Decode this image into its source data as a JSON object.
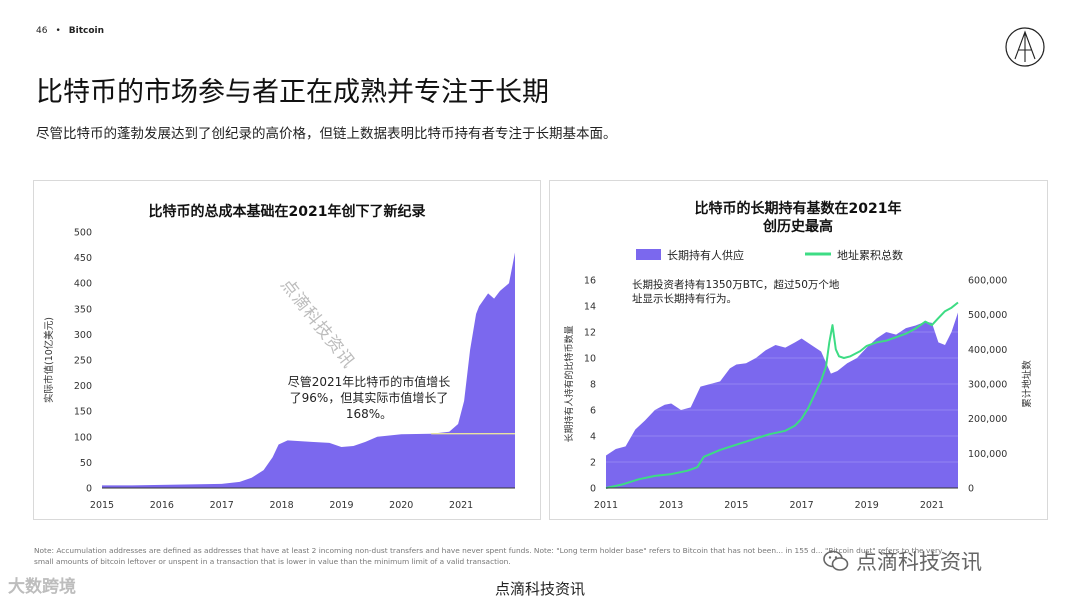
{
  "header": {
    "page_number": "46",
    "bullet": "•",
    "section": "Bitcoin"
  },
  "title": "比特币的市场参与者正在成熟并专注于长期",
  "subtitle": "尽管比特币的蓬勃发展达到了创纪录的高价格，但链上数据表明比特币持有者专注于长期基本面。",
  "watermarks": {
    "diagonal": "点滴科技资讯",
    "bottom_left": "大数跨境",
    "bottom_right": "点滴科技资讯"
  },
  "footnote": "Note: Accumulation addresses are defined as addresses that have at least 2 incoming non-dust transfers and have never spent funds. Note: \"Long term holder base\" refers to Bitcoin that has not been... in 155 d... \"Bitcoin dust\" refers to the very small amounts of bitcoin leftover or unspent in a transaction that is lower in value than the minimum limit of a valid transaction.",
  "footer": "点滴科技资讯",
  "colors": {
    "purple": "#7b68ee",
    "green": "#3ddc84",
    "refline": "#e8e3a0"
  },
  "chart_data": [
    {
      "type": "area",
      "title": "比特币的总成本基础在2021年创下了新纪录",
      "ylabel": "实际市值(10亿美元)",
      "xlabel": "",
      "ylim": [
        0,
        500
      ],
      "yticks": [
        0,
        50,
        100,
        150,
        200,
        250,
        300,
        350,
        400,
        450,
        500
      ],
      "xlim": [
        2015,
        2021.9
      ],
      "xticks": [
        {
          "label": "2015",
          "x": 2015
        },
        {
          "label": "2016",
          "x": 2016
        },
        {
          "label": "2017",
          "x": 2017
        },
        {
          "label": "2018",
          "x": 2018
        },
        {
          "label": "2019",
          "x": 2019
        },
        {
          "label": "2020",
          "x": 2020
        },
        {
          "label": "2021",
          "x": 2021
        }
      ],
      "annotation": "尽管2021年比特币的市值增长了96%，但其实际市值增长了168%。",
      "reference_line": {
        "y": 106,
        "from": 2020.5,
        "to": 2021.9
      },
      "series": [
        {
          "x": [
            2015.0,
            2015.5,
            2016.0,
            2016.5,
            2017.0,
            2017.3,
            2017.5,
            2017.7,
            2017.85,
            2017.95,
            2018.1,
            2018.5,
            2018.8,
            2019.0,
            2019.2,
            2019.4,
            2019.6,
            2020.0,
            2020.5,
            2020.8,
            2020.95,
            2021.05,
            2021.15,
            2021.25,
            2021.3,
            2021.45,
            2021.55,
            2021.65,
            2021.8,
            2021.9
          ],
          "values": [
            5,
            5,
            6,
            7,
            8,
            12,
            20,
            35,
            60,
            85,
            93,
            90,
            88,
            80,
            82,
            90,
            100,
            105,
            106,
            110,
            125,
            170,
            270,
            340,
            355,
            380,
            370,
            385,
            400,
            460
          ]
        }
      ]
    },
    {
      "type": "area",
      "title": "比特币的长期持有基数在2021年创历史最高",
      "ylabel": "长期持有人持有的比特币数量",
      "y2label": "累计地址数",
      "legend": [
        "长期持有人供应",
        "地址累积总数"
      ],
      "legend_position": "top",
      "ylim": [
        0,
        16
      ],
      "yticks": [
        0,
        2,
        4,
        6,
        8,
        10,
        12,
        14,
        16
      ],
      "y2lim": [
        0,
        600000
      ],
      "y2ticks": [
        "0",
        "100,000",
        "200,000",
        "300,000",
        "400,000",
        "500,000",
        "600,000"
      ],
      "xlim": [
        2011,
        2021.8
      ],
      "xticks": [
        {
          "label": "2011",
          "x": 2011
        },
        {
          "label": "2013",
          "x": 2013
        },
        {
          "label": "2015",
          "x": 2015
        },
        {
          "label": "2017",
          "x": 2017
        },
        {
          "label": "2019",
          "x": 2019
        },
        {
          "label": "2021",
          "x": 2021
        }
      ],
      "annotation": "长期投资者持有1350万BTC，超过50万个地址显示长期持有行为。",
      "series": [
        {
          "name": "长期持有人供应",
          "axis": "left",
          "x": [
            2011.0,
            2011.3,
            2011.6,
            2011.9,
            2012.2,
            2012.5,
            2012.8,
            2013.0,
            2013.3,
            2013.6,
            2013.9,
            2014.2,
            2014.5,
            2014.8,
            2015.0,
            2015.3,
            2015.6,
            2015.9,
            2016.2,
            2016.5,
            2016.8,
            2017.0,
            2017.3,
            2017.6,
            2017.9,
            2018.1,
            2018.4,
            2018.7,
            2019.0,
            2019.3,
            2019.6,
            2019.9,
            2020.2,
            2020.5,
            2020.8,
            2021.0,
            2021.2,
            2021.4,
            2021.6,
            2021.8
          ],
          "values": [
            2.5,
            3.0,
            3.2,
            4.5,
            5.2,
            6.0,
            6.4,
            6.5,
            6.0,
            6.2,
            7.8,
            8.0,
            8.2,
            9.2,
            9.5,
            9.6,
            10.0,
            10.6,
            11.0,
            10.8,
            11.2,
            11.5,
            11.0,
            10.5,
            8.8,
            9.0,
            9.6,
            10.0,
            10.8,
            11.5,
            12.0,
            11.8,
            12.3,
            12.5,
            12.8,
            12.7,
            11.2,
            11.0,
            12.0,
            13.5
          ]
        },
        {
          "name": "地址累积总数",
          "axis": "right",
          "x": [
            2011.0,
            2011.5,
            2012.0,
            2012.5,
            2013.0,
            2013.5,
            2013.8,
            2014.0,
            2014.5,
            2015.0,
            2015.5,
            2016.0,
            2016.5,
            2016.8,
            2017.0,
            2017.2,
            2017.4,
            2017.6,
            2017.75,
            2017.85,
            2017.95,
            2018.05,
            2018.15,
            2018.3,
            2018.5,
            2018.8,
            2019.0,
            2019.3,
            2019.6,
            2019.9,
            2020.2,
            2020.5,
            2020.8,
            2021.0,
            2021.2,
            2021.4,
            2021.6,
            2021.8
          ],
          "values": [
            0,
            10000,
            25000,
            35000,
            40000,
            50000,
            60000,
            90000,
            110000,
            125000,
            140000,
            155000,
            165000,
            180000,
            200000,
            230000,
            270000,
            310000,
            350000,
            420000,
            470000,
            400000,
            380000,
            375000,
            380000,
            395000,
            410000,
            420000,
            425000,
            435000,
            445000,
            460000,
            480000,
            470000,
            490000,
            510000,
            520000,
            535000
          ]
        }
      ]
    }
  ]
}
